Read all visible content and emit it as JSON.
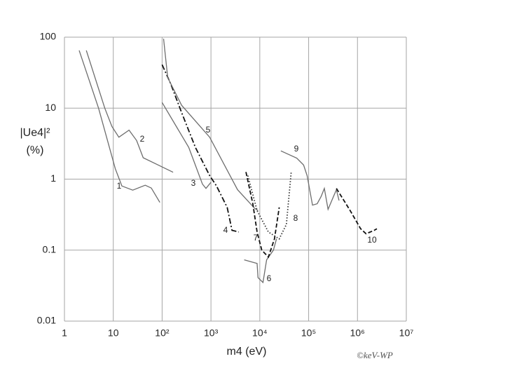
{
  "chart_data": {
    "type": "line",
    "log_x": true,
    "log_y": true,
    "grid": true,
    "xlabel": "m4 (eV)",
    "ylabel": [
      "|Ue4|²",
      "(%)"
    ],
    "watermark": "©keV-WP",
    "xlim": [
      1,
      10000000
    ],
    "ylim": [
      0.01,
      100
    ],
    "xticks": [
      1,
      10,
      {
        "value": 100,
        "label": "10²"
      },
      {
        "value": 1000,
        "label": "10³"
      },
      {
        "value": 10000,
        "label": "10⁴"
      },
      {
        "value": 100000,
        "label": "10⁵"
      },
      {
        "value": 1000000,
        "label": "10⁶"
      },
      {
        "value": 10000000,
        "label": "10⁷"
      }
    ],
    "yticks": [
      0.01,
      0.1,
      1,
      10,
      100
    ],
    "series": [
      {
        "name": "1",
        "color": "#6d6d6d",
        "dash": "solid",
        "x": [
          2,
          5,
          11,
          15,
          25,
          45,
          60,
          90
        ],
        "values": [
          65,
          10,
          1.4,
          0.8,
          0.7,
          0.82,
          0.75,
          0.47
        ]
      },
      {
        "name": "2",
        "color": "#6d6d6d",
        "dash": "solid",
        "x": [
          2.8,
          6.7,
          9.4,
          13,
          21,
          30,
          41,
          80,
          168
        ],
        "values": [
          65,
          10,
          5.5,
          3.9,
          4.9,
          3.5,
          2,
          1.6,
          1.25
        ]
      },
      {
        "name": "3",
        "color": "#6d6d6d",
        "dash": "solid",
        "x": [
          100,
          350,
          670,
          790,
          1000
        ],
        "values": [
          12,
          2.8,
          0.85,
          0.74,
          0.9
        ]
      },
      {
        "name": "4",
        "color": "#111111",
        "dash": "dashdot",
        "x": [
          100,
          150,
          250,
          480,
          940,
          1300,
          2150,
          2700,
          3700
        ],
        "values": [
          41,
          22,
          8.7,
          2.8,
          1.12,
          0.8,
          0.4,
          0.19,
          0.18
        ]
      },
      {
        "name": "5",
        "color": "#6d6d6d",
        "dash": "solid",
        "x": [
          107,
          130,
          250,
          940,
          3500,
          7800,
          9200
        ],
        "values": [
          95,
          27,
          11,
          3.9,
          0.71,
          0.39,
          0.36
        ]
      },
      {
        "name": "6",
        "color": "#6d6d6d",
        "dash": "solid",
        "x": [
          4800,
          8800,
          9200,
          11600,
          13800,
          19000,
          22000
        ],
        "values": [
          0.073,
          0.065,
          0.041,
          0.035,
          0.073,
          0.1,
          0.144
        ]
      },
      {
        "name": "7",
        "color": "#111111",
        "dash": "dashed",
        "x": [
          5200,
          7200,
          8800,
          11000,
          15000,
          20000,
          25000
        ],
        "values": [
          1.26,
          0.45,
          0.18,
          0.1,
          0.08,
          0.144,
          0.4
        ]
      },
      {
        "name": "8",
        "color": "#333333",
        "dash": "dotted",
        "x": [
          5700,
          8800,
          15000,
          25000,
          35000,
          44000
        ],
        "values": [
          1.12,
          0.36,
          0.18,
          0.144,
          0.23,
          1.26
        ]
      },
      {
        "name": "9",
        "color": "#6d6d6d",
        "dash": "solid",
        "x": [
          27000,
          57000,
          79000,
          93000,
          120000,
          150000,
          180000,
          210000,
          250000,
          330000,
          370000,
          420000
        ],
        "values": [
          2.5,
          1.98,
          1.58,
          1.12,
          0.43,
          0.45,
          0.57,
          0.74,
          0.375,
          0.59,
          0.71,
          0.5
        ]
      },
      {
        "name": "10",
        "color": "#111111",
        "dash": "dashed",
        "x": [
          370000,
          710000,
          1160000,
          1500000,
          2200000,
          2500000
        ],
        "values": [
          0.74,
          0.36,
          0.2,
          0.17,
          0.19,
          0.2
        ]
      }
    ]
  }
}
